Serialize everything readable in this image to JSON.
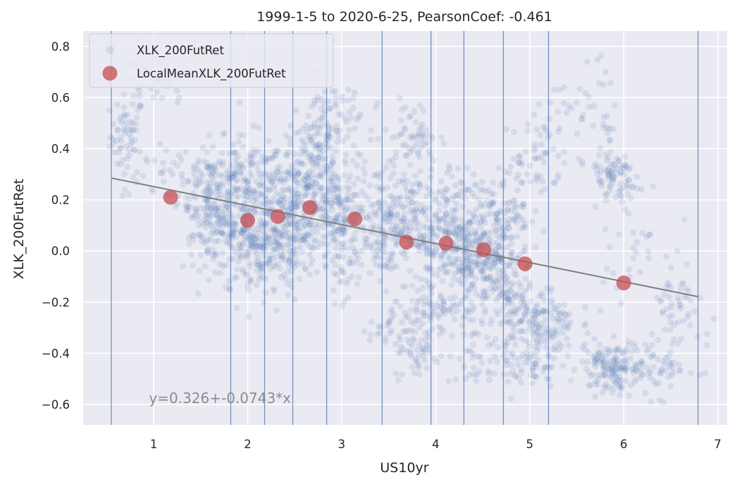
{
  "chart_data": {
    "type": "scatter",
    "title": "1999-1-5 to 2020-6-25, PearsonCoef: -0.461",
    "xlabel": "US10yr",
    "ylabel": "XLK_200FutRet",
    "xlim": [
      0.25,
      7.1
    ],
    "ylim": [
      -0.68,
      0.86
    ],
    "x_ticks": [
      1,
      2,
      3,
      4,
      5,
      6,
      7
    ],
    "y_ticks": [
      -0.6,
      -0.4,
      -0.2,
      0.0,
      0.2,
      0.4,
      0.6,
      0.8
    ],
    "x_tick_labels": [
      "1",
      "2",
      "3",
      "4",
      "5",
      "6",
      "7"
    ],
    "y_tick_labels": [
      "−0.6",
      "−0.4",
      "−0.2",
      "0.0",
      "0.2",
      "0.4",
      "0.6",
      "0.8"
    ],
    "grid": true,
    "legend_position": "top-left",
    "colors": {
      "background": "#eaeaf2",
      "grid": "#ffffff",
      "scatter": "#4c72b0",
      "local_mean": "#c44e52",
      "fit_line": "#808080",
      "bin_lines": "#4c72b0"
    },
    "series": [
      {
        "name": "XLK_200FutRet",
        "kind": "scatter",
        "clusters": [
          {
            "cx": 0.72,
            "cy": 0.45,
            "sx": 0.09,
            "sy": 0.08,
            "n": 60
          },
          {
            "cx": 0.9,
            "cy": 0.68,
            "sx": 0.12,
            "sy": 0.06,
            "n": 25
          },
          {
            "cx": 1.15,
            "cy": 0.62,
            "sx": 0.1,
            "sy": 0.06,
            "n": 12
          },
          {
            "cx": 1.05,
            "cy": 0.32,
            "sx": 0.2,
            "sy": 0.07,
            "n": 25
          },
          {
            "cx": 1.6,
            "cy": 0.25,
            "sx": 0.17,
            "sy": 0.09,
            "n": 140
          },
          {
            "cx": 1.65,
            "cy": 0.07,
            "sx": 0.17,
            "sy": 0.07,
            "n": 90
          },
          {
            "cx": 2.0,
            "cy": 0.22,
            "sx": 0.2,
            "sy": 0.11,
            "n": 180
          },
          {
            "cx": 2.05,
            "cy": 0.0,
            "sx": 0.2,
            "sy": 0.09,
            "n": 140
          },
          {
            "cx": 2.45,
            "cy": 0.2,
            "sx": 0.2,
            "sy": 0.1,
            "n": 220
          },
          {
            "cx": 2.4,
            "cy": 0.02,
            "sx": 0.2,
            "sy": 0.08,
            "n": 120
          },
          {
            "cx": 2.75,
            "cy": 0.3,
            "sx": 0.17,
            "sy": 0.12,
            "n": 140
          },
          {
            "cx": 2.9,
            "cy": 0.5,
            "sx": 0.15,
            "sy": 0.09,
            "n": 70
          },
          {
            "cx": 3.0,
            "cy": 0.12,
            "sx": 0.15,
            "sy": 0.1,
            "n": 150
          },
          {
            "cx": 3.0,
            "cy": -0.08,
            "sx": 0.08,
            "sy": 0.06,
            "n": 25
          },
          {
            "cx": 3.45,
            "cy": 0.12,
            "sx": 0.18,
            "sy": 0.12,
            "n": 140
          },
          {
            "cx": 3.55,
            "cy": -0.3,
            "sx": 0.13,
            "sy": 0.05,
            "n": 35
          },
          {
            "cx": 3.75,
            "cy": 0.45,
            "sx": 0.15,
            "sy": 0.07,
            "n": 60
          },
          {
            "cx": 3.75,
            "cy": 0.1,
            "sx": 0.2,
            "sy": 0.1,
            "n": 140
          },
          {
            "cx": 3.8,
            "cy": -0.4,
            "sx": 0.12,
            "sy": 0.05,
            "n": 45
          },
          {
            "cx": 4.05,
            "cy": -0.22,
            "sx": 0.2,
            "sy": 0.06,
            "n": 90
          },
          {
            "cx": 4.15,
            "cy": 0.2,
            "sx": 0.15,
            "sy": 0.08,
            "n": 70
          },
          {
            "cx": 4.3,
            "cy": 0.0,
            "sx": 0.2,
            "sy": 0.07,
            "n": 240
          },
          {
            "cx": 4.65,
            "cy": -0.1,
            "sx": 0.2,
            "sy": 0.08,
            "n": 130
          },
          {
            "cx": 4.7,
            "cy": 0.15,
            "sx": 0.15,
            "sy": 0.08,
            "n": 110
          },
          {
            "cx": 4.5,
            "cy": -0.4,
            "sx": 0.18,
            "sy": 0.06,
            "n": 40
          },
          {
            "cx": 5.05,
            "cy": 0.35,
            "sx": 0.15,
            "sy": 0.09,
            "n": 50
          },
          {
            "cx": 5.05,
            "cy": -0.28,
            "sx": 0.22,
            "sy": 0.07,
            "n": 180
          },
          {
            "cx": 5.0,
            "cy": -0.46,
            "sx": 0.15,
            "sy": 0.05,
            "n": 50
          },
          {
            "cx": 5.45,
            "cy": 0.55,
            "sx": 0.2,
            "sy": 0.07,
            "n": 30
          },
          {
            "cx": 5.8,
            "cy": 0.45,
            "sx": 0.12,
            "sy": 0.12,
            "n": 25
          },
          {
            "cx": 5.9,
            "cy": 0.28,
            "sx": 0.12,
            "sy": 0.06,
            "n": 70
          },
          {
            "cx": 5.85,
            "cy": -0.45,
            "sx": 0.15,
            "sy": 0.05,
            "n": 120
          },
          {
            "cx": 6.05,
            "cy": 0.05,
            "sx": 0.2,
            "sy": 0.12,
            "n": 40
          },
          {
            "cx": 6.3,
            "cy": -0.45,
            "sx": 0.25,
            "sy": 0.06,
            "n": 90
          },
          {
            "cx": 6.55,
            "cy": -0.22,
            "sx": 0.15,
            "sy": 0.06,
            "n": 40
          }
        ]
      },
      {
        "name": "LocalMeanXLK_200FutRet",
        "kind": "scatter",
        "x": [
          1.18,
          2.0,
          2.32,
          2.66,
          3.14,
          3.69,
          4.11,
          4.51,
          4.95,
          6.0
        ],
        "y": [
          0.21,
          0.12,
          0.135,
          0.17,
          0.125,
          0.035,
          0.03,
          0.005,
          -0.05,
          -0.125
        ]
      }
    ],
    "bin_lines": [
      0.55,
      1.82,
      2.18,
      2.48,
      2.84,
      3.43,
      3.95,
      4.3,
      4.72,
      5.2,
      6.79
    ],
    "fit_line": {
      "x": [
        0.55,
        6.79
      ],
      "intercept": 0.326,
      "slope": -0.0743
    },
    "annotations": [
      {
        "text": "y=0.326+-0.0743*x",
        "x": 0.95,
        "y": -0.575
      }
    ]
  }
}
